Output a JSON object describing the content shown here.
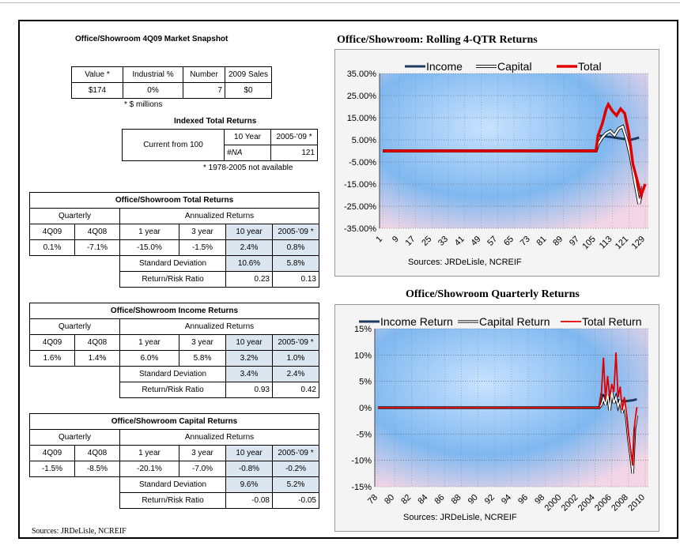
{
  "snapshot": {
    "title": "Office/Showroom 4Q09 Market Snapshot",
    "headers": [
      "Value *",
      "Industrial %",
      "Number",
      "2009 Sales"
    ],
    "values": [
      "$174",
      "0%",
      "7",
      "$0"
    ],
    "footnote": "* $ millions"
  },
  "indexed": {
    "title": "Indexed Total Returns",
    "label": "Current from 100",
    "col1": "10 Year",
    "col2": "2005-'09 *",
    "val1": "#NA",
    "val2": "121",
    "footnote": "* 1978-2005 not available"
  },
  "total_returns": {
    "title": "Office/Showroom Total Returns",
    "quarterly": "Quarterly",
    "annualized": "Annualized Returns",
    "heads": [
      "4Q09",
      "4Q08",
      "1 year",
      "3 year",
      "10 year",
      "2005-'09 *"
    ],
    "vals": [
      "0.1%",
      "-7.1%",
      "-15.0%",
      "-1.5%",
      "2.4%",
      "0.8%"
    ],
    "sd_label": "Standard Deviation",
    "sd_vals": [
      "10.6%",
      "5.8%"
    ],
    "rr_label": "Return/Risk Ratio",
    "rr_vals": [
      "0.23",
      "0.13"
    ]
  },
  "income_returns": {
    "title": "Office/Showroom Income Returns",
    "quarterly": "Quarterly",
    "annualized": "Annualized Returns",
    "heads": [
      "4Q09",
      "4Q08",
      "1 year",
      "3 year",
      "10 year",
      "2005-'09 *"
    ],
    "vals": [
      "1.6%",
      "1.4%",
      "6.0%",
      "5.8%",
      "3.2%",
      "1.0%"
    ],
    "sd_label": "Standard Deviation",
    "sd_vals": [
      "3.4%",
      "2.4%"
    ],
    "rr_label": "Return/Risk Ratio",
    "rr_vals": [
      "0.93",
      "0.42"
    ]
  },
  "capital_returns": {
    "title": "Office/Showroom Capital Returns",
    "quarterly": "Quarterly",
    "annualized": "Annualized Returns",
    "heads": [
      "4Q09",
      "4Q08",
      "1 year",
      "3 year",
      "10 year",
      "2005-'09 *"
    ],
    "vals": [
      "-1.5%",
      "-8.5%",
      "-20.1%",
      "-7.0%",
      "-0.8%",
      "-0.2%"
    ],
    "sd_label": "Standard Deviation",
    "sd_vals": [
      "9.6%",
      "5.2%"
    ],
    "rr_label": "Return/Risk Ratio",
    "rr_vals": [
      "-0.08",
      "-0.05"
    ]
  },
  "sources_bottom": "Sources: JRDeLisle, NCREIF",
  "chart_data": [
    {
      "type": "line",
      "title": "Office/Showroom:  Rolling 4-QTR Returns",
      "source": "Sources: JRDeLisle, NCREIF",
      "y_ticks": [
        "35.00%",
        "25.00%",
        "15.00%",
        "5.00%",
        "-5.00%",
        "-15.00%",
        "-25.00%",
        "-35.00%"
      ],
      "ylim": [
        -35,
        35
      ],
      "x_ticks": [
        "1",
        "9",
        "17",
        "25",
        "33",
        "41",
        "49",
        "57",
        "65",
        "73",
        "81",
        "89",
        "97",
        "105",
        "113",
        "121",
        "129"
      ],
      "xlim": [
        1,
        129
      ],
      "legend": "top",
      "series": [
        {
          "name": "Income",
          "color": "#1f3a5f",
          "points": [
            [
              1,
              0
            ],
            [
              105,
              0
            ],
            [
              106,
              7
            ],
            [
              110,
              6.5
            ],
            [
              114,
              6
            ],
            [
              118,
              5.5
            ],
            [
              122,
              5
            ],
            [
              124,
              5.5
            ],
            [
              126,
              6
            ]
          ]
        },
        {
          "name": "Capital",
          "color": "#111111",
          "points": [
            [
              1,
              0
            ],
            [
              105,
              0
            ],
            [
              106,
              3
            ],
            [
              108,
              6
            ],
            [
              110,
              8
            ],
            [
              112,
              9
            ],
            [
              114,
              7
            ],
            [
              116,
              10
            ],
            [
              118,
              11
            ],
            [
              120,
              5
            ],
            [
              122,
              -3
            ],
            [
              124,
              -14
            ],
            [
              126,
              -24
            ],
            [
              128,
              -16
            ]
          ]
        },
        {
          "name": "Total",
          "color": "#e00000",
          "points": [
            [
              1,
              0
            ],
            [
              105,
              0
            ],
            [
              106,
              7
            ],
            [
              108,
              12
            ],
            [
              110,
              19
            ],
            [
              111,
              21
            ],
            [
              113,
              18
            ],
            [
              115,
              16
            ],
            [
              117,
              19
            ],
            [
              119,
              17
            ],
            [
              121,
              8
            ],
            [
              123,
              -6
            ],
            [
              125,
              -13
            ],
            [
              127,
              -20
            ],
            [
              129,
              -15
            ]
          ]
        }
      ]
    },
    {
      "type": "line",
      "title": "Office/Showroom Quarterly Returns",
      "source": "Sources: JRDeLisle, NCREIF",
      "y_ticks": [
        "15%",
        "10%",
        "5%",
        "0%",
        "-5%",
        "-10%",
        "-15%"
      ],
      "ylim": [
        -15,
        15
      ],
      "x_ticks": [
        "78",
        "80",
        "82",
        "84",
        "86",
        "88",
        "90",
        "92",
        "94",
        "96",
        "98",
        "2000",
        "2002",
        "2004",
        "2006",
        "2008",
        "2010"
      ],
      "xlim": [
        1978,
        2010
      ],
      "legend": "top",
      "series": [
        {
          "name": "Income Return",
          "color": "#1f3a5f",
          "points": [
            [
              1978,
              0
            ],
            [
              2004.5,
              0
            ],
            [
              2004.75,
              2.5
            ],
            [
              2005.5,
              2
            ],
            [
              2006.5,
              1.5
            ],
            [
              2007.5,
              1.2
            ],
            [
              2008.5,
              1.4
            ],
            [
              2009,
              1.6
            ]
          ]
        },
        {
          "name": "Capital Return",
          "color": "#111111",
          "points": [
            [
              1978,
              0
            ],
            [
              2004.5,
              0
            ],
            [
              2004.75,
              0.5
            ],
            [
              2005,
              1.8
            ],
            [
              2005.25,
              0.5
            ],
            [
              2005.5,
              2.5
            ],
            [
              2005.75,
              -0.5
            ],
            [
              2006,
              3
            ],
            [
              2006.25,
              0.8
            ],
            [
              2006.5,
              2
            ],
            [
              2006.75,
              0.2
            ],
            [
              2007,
              1.5
            ],
            [
              2007.25,
              -1
            ],
            [
              2007.5,
              0.5
            ],
            [
              2007.75,
              -2
            ],
            [
              2008,
              -6
            ],
            [
              2008.25,
              -9
            ],
            [
              2008.5,
              -12.5
            ],
            [
              2008.75,
              -4
            ],
            [
              2009,
              -1.5
            ]
          ]
        },
        {
          "name": "Total Return",
          "color": "#e00000",
          "points": [
            [
              1978,
              0
            ],
            [
              2004.5,
              0
            ],
            [
              2004.75,
              2.5
            ],
            [
              2005,
              9.5
            ],
            [
              2005.25,
              1.5
            ],
            [
              2005.5,
              6
            ],
            [
              2005.75,
              2
            ],
            [
              2006,
              4.5
            ],
            [
              2006.25,
              3
            ],
            [
              2006.5,
              10.5
            ],
            [
              2006.75,
              2
            ],
            [
              2007,
              4
            ],
            [
              2007.25,
              -0.5
            ],
            [
              2007.5,
              2
            ],
            [
              2007.75,
              -1
            ],
            [
              2008,
              -5
            ],
            [
              2008.25,
              -8
            ],
            [
              2008.5,
              -11
            ],
            [
              2008.75,
              -3
            ],
            [
              2009,
              0.1
            ]
          ]
        }
      ]
    }
  ]
}
